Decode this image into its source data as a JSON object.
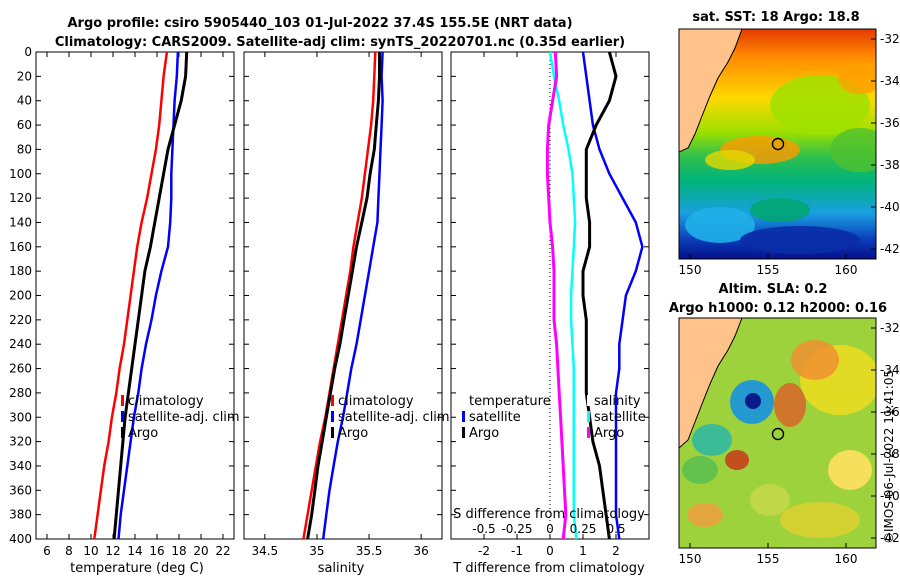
{
  "header": {
    "line1": "Argo profile: csiro 5905440_103 01-Jul-2022 37.4S 155.5E (NRT data)",
    "line2": "Climatology: CARS2009. Satellite-adj clim: synTS_20220701.nc (0.35d earlier)"
  },
  "sst_map": {
    "title": "sat. SST: 18 Argo: 18.8",
    "lat_ticks": [
      "-32",
      "-34",
      "-36",
      "-38",
      "-40",
      "-42"
    ],
    "lon_ticks": [
      "150",
      "155",
      "160"
    ]
  },
  "sla_map": {
    "title1": "Altim. SLA: 0.2",
    "title2": "Argo h1000: 0.12 h2000: 0.16",
    "lat_ticks": [
      "-32",
      "-34",
      "-36",
      "-38",
      "-40",
      "-42"
    ],
    "lon_ticks": [
      "150",
      "155",
      "160"
    ]
  },
  "credit": "©IMOS 06-Jul-2022 11:41:05",
  "colors": {
    "climatology": "#ff0000",
    "satellite": "#0000ff",
    "argo": "#000000",
    "temp_diff": "#00ffff",
    "sal_diff": "#ff00ff",
    "land": "#ffc28a"
  },
  "chart_data": [
    {
      "type": "line",
      "id": "temperature",
      "xlabel": "temperature (deg C)",
      "ylabel": "",
      "xlim": [
        5,
        23
      ],
      "ylim": [
        400,
        0
      ],
      "x_ticks": [
        6,
        8,
        10,
        12,
        14,
        16,
        18,
        20,
        22
      ],
      "y_ticks": [
        0,
        20,
        40,
        60,
        80,
        100,
        120,
        140,
        160,
        180,
        200,
        220,
        240,
        260,
        280,
        300,
        320,
        340,
        360,
        380,
        400
      ],
      "depth": [
        0,
        20,
        40,
        60,
        80,
        100,
        120,
        140,
        160,
        180,
        200,
        220,
        240,
        260,
        280,
        300,
        320,
        340,
        360,
        380,
        400
      ],
      "legend": [
        "climatology",
        "satellite-adj. clim",
        "Argo"
      ],
      "series": [
        {
          "name": "climatology",
          "color": "#ff0000",
          "values": [
            16.9,
            16.6,
            16.4,
            16.2,
            15.9,
            15.5,
            15.1,
            14.6,
            14.2,
            13.9,
            13.6,
            13.3,
            13.0,
            12.6,
            12.3,
            11.9,
            11.6,
            11.2,
            10.9,
            10.6,
            10.3
          ]
        },
        {
          "name": "satellite-adj. clim",
          "color": "#0000ff",
          "values": [
            17.9,
            17.8,
            17.6,
            17.5,
            17.4,
            17.3,
            17.3,
            17.2,
            17.0,
            16.4,
            15.9,
            15.5,
            15.0,
            14.6,
            14.3,
            13.9,
            13.6,
            13.3,
            13.0,
            12.7,
            12.5
          ]
        },
        {
          "name": "Argo",
          "color": "#000000",
          "values": [
            18.7,
            18.6,
            18.2,
            17.6,
            17.0,
            16.6,
            16.2,
            15.8,
            15.4,
            14.9,
            14.6,
            14.3,
            14.0,
            13.7,
            13.4,
            13.1,
            12.9,
            12.7,
            12.5,
            12.3,
            12.1
          ]
        }
      ]
    },
    {
      "type": "line",
      "id": "salinity",
      "xlabel": "salinity",
      "xlim": [
        34.3,
        36.2
      ],
      "ylim": [
        400,
        0
      ],
      "x_ticks": [
        34.5,
        35,
        35.5,
        36
      ],
      "x_tick_labels": [
        "34.5",
        "35",
        "35.5",
        "36"
      ],
      "depth": [
        0,
        20,
        40,
        60,
        80,
        100,
        120,
        140,
        160,
        180,
        200,
        220,
        240,
        260,
        280,
        300,
        320,
        340,
        360,
        380,
        400
      ],
      "legend": [
        "climatology",
        "satellite-adj. clim",
        "Argo"
      ],
      "series": [
        {
          "name": "climatology",
          "color": "#ff0000",
          "values": [
            35.56,
            35.55,
            35.54,
            35.52,
            35.49,
            35.46,
            35.43,
            35.39,
            35.35,
            35.32,
            35.28,
            35.24,
            35.2,
            35.16,
            35.12,
            35.08,
            35.03,
            34.99,
            34.95,
            34.91,
            34.87
          ]
        },
        {
          "name": "satellite-adj. clim",
          "color": "#0000ff",
          "values": [
            35.63,
            35.62,
            35.63,
            35.62,
            35.61,
            35.6,
            35.59,
            35.58,
            35.54,
            35.5,
            35.46,
            35.42,
            35.38,
            35.33,
            35.29,
            35.25,
            35.2,
            35.16,
            35.12,
            35.09,
            35.06
          ]
        },
        {
          "name": "Argo",
          "color": "#000000",
          "values": [
            35.6,
            35.6,
            35.59,
            35.57,
            35.55,
            35.51,
            35.48,
            35.43,
            35.38,
            35.34,
            35.3,
            35.26,
            35.22,
            35.17,
            35.13,
            35.09,
            35.05,
            35.01,
            34.98,
            34.95,
            34.91
          ]
        }
      ]
    },
    {
      "type": "line",
      "id": "difference",
      "xlabel": "T difference from climatology",
      "xlabel_top": "S difference from climatology",
      "xlim": [
        -3,
        3
      ],
      "ylim": [
        400,
        0
      ],
      "x_ticks": [
        -2,
        -1,
        0,
        1,
        2
      ],
      "x_tick_labels": [
        "-2",
        "-1",
        "0",
        "1",
        "2"
      ],
      "s_ticks": [
        -0.5,
        -0.25,
        0,
        0.25,
        0.5
      ],
      "s_tick_labels": [
        "-0.5",
        "-0.25",
        "0",
        "0.25",
        "0.5"
      ],
      "s_scale": 4,
      "depth": [
        0,
        20,
        40,
        60,
        80,
        100,
        120,
        140,
        160,
        180,
        200,
        220,
        240,
        260,
        280,
        300,
        320,
        340,
        360,
        380,
        400
      ],
      "legend_left": [
        "temperature",
        "satellite",
        "Argo"
      ],
      "legend_right": [
        "salinity",
        "satellite",
        "Argo"
      ],
      "series": [
        {
          "name": "temperature satellite",
          "color": "#0000ff",
          "values": [
            1.0,
            1.1,
            1.2,
            1.3,
            1.5,
            1.8,
            2.2,
            2.6,
            2.8,
            2.6,
            2.3,
            2.2,
            2.1,
            2.1,
            2.0,
            2.0,
            2.0,
            2.0,
            2.0,
            2.0,
            2.1
          ]
        },
        {
          "name": "temperature Argo",
          "color": "#000000",
          "values": [
            1.8,
            2.0,
            1.8,
            1.4,
            1.1,
            1.1,
            1.1,
            1.2,
            1.2,
            1.0,
            1.0,
            1.1,
            1.1,
            1.1,
            1.1,
            1.2,
            1.3,
            1.5,
            1.6,
            1.7,
            1.8
          ]
        },
        {
          "name": "salinity satellite",
          "color": "#00ffff",
          "values": [
            0.0,
            0.03,
            0.07,
            0.1,
            0.14,
            0.17,
            0.18,
            0.19,
            0.18,
            0.17,
            0.16,
            0.16,
            0.17,
            0.18,
            0.18,
            0.18,
            0.18,
            0.18,
            0.18,
            0.18,
            0.2
          ]
        },
        {
          "name": "salinity Argo",
          "color": "#ff00ff",
          "values": [
            0.04,
            0.05,
            0.02,
            -0.01,
            -0.02,
            -0.02,
            -0.01,
            0.0,
            0.02,
            0.03,
            0.03,
            0.03,
            0.05,
            0.06,
            0.07,
            0.08,
            0.09,
            0.1,
            0.11,
            0.12,
            0.1
          ]
        }
      ]
    }
  ]
}
